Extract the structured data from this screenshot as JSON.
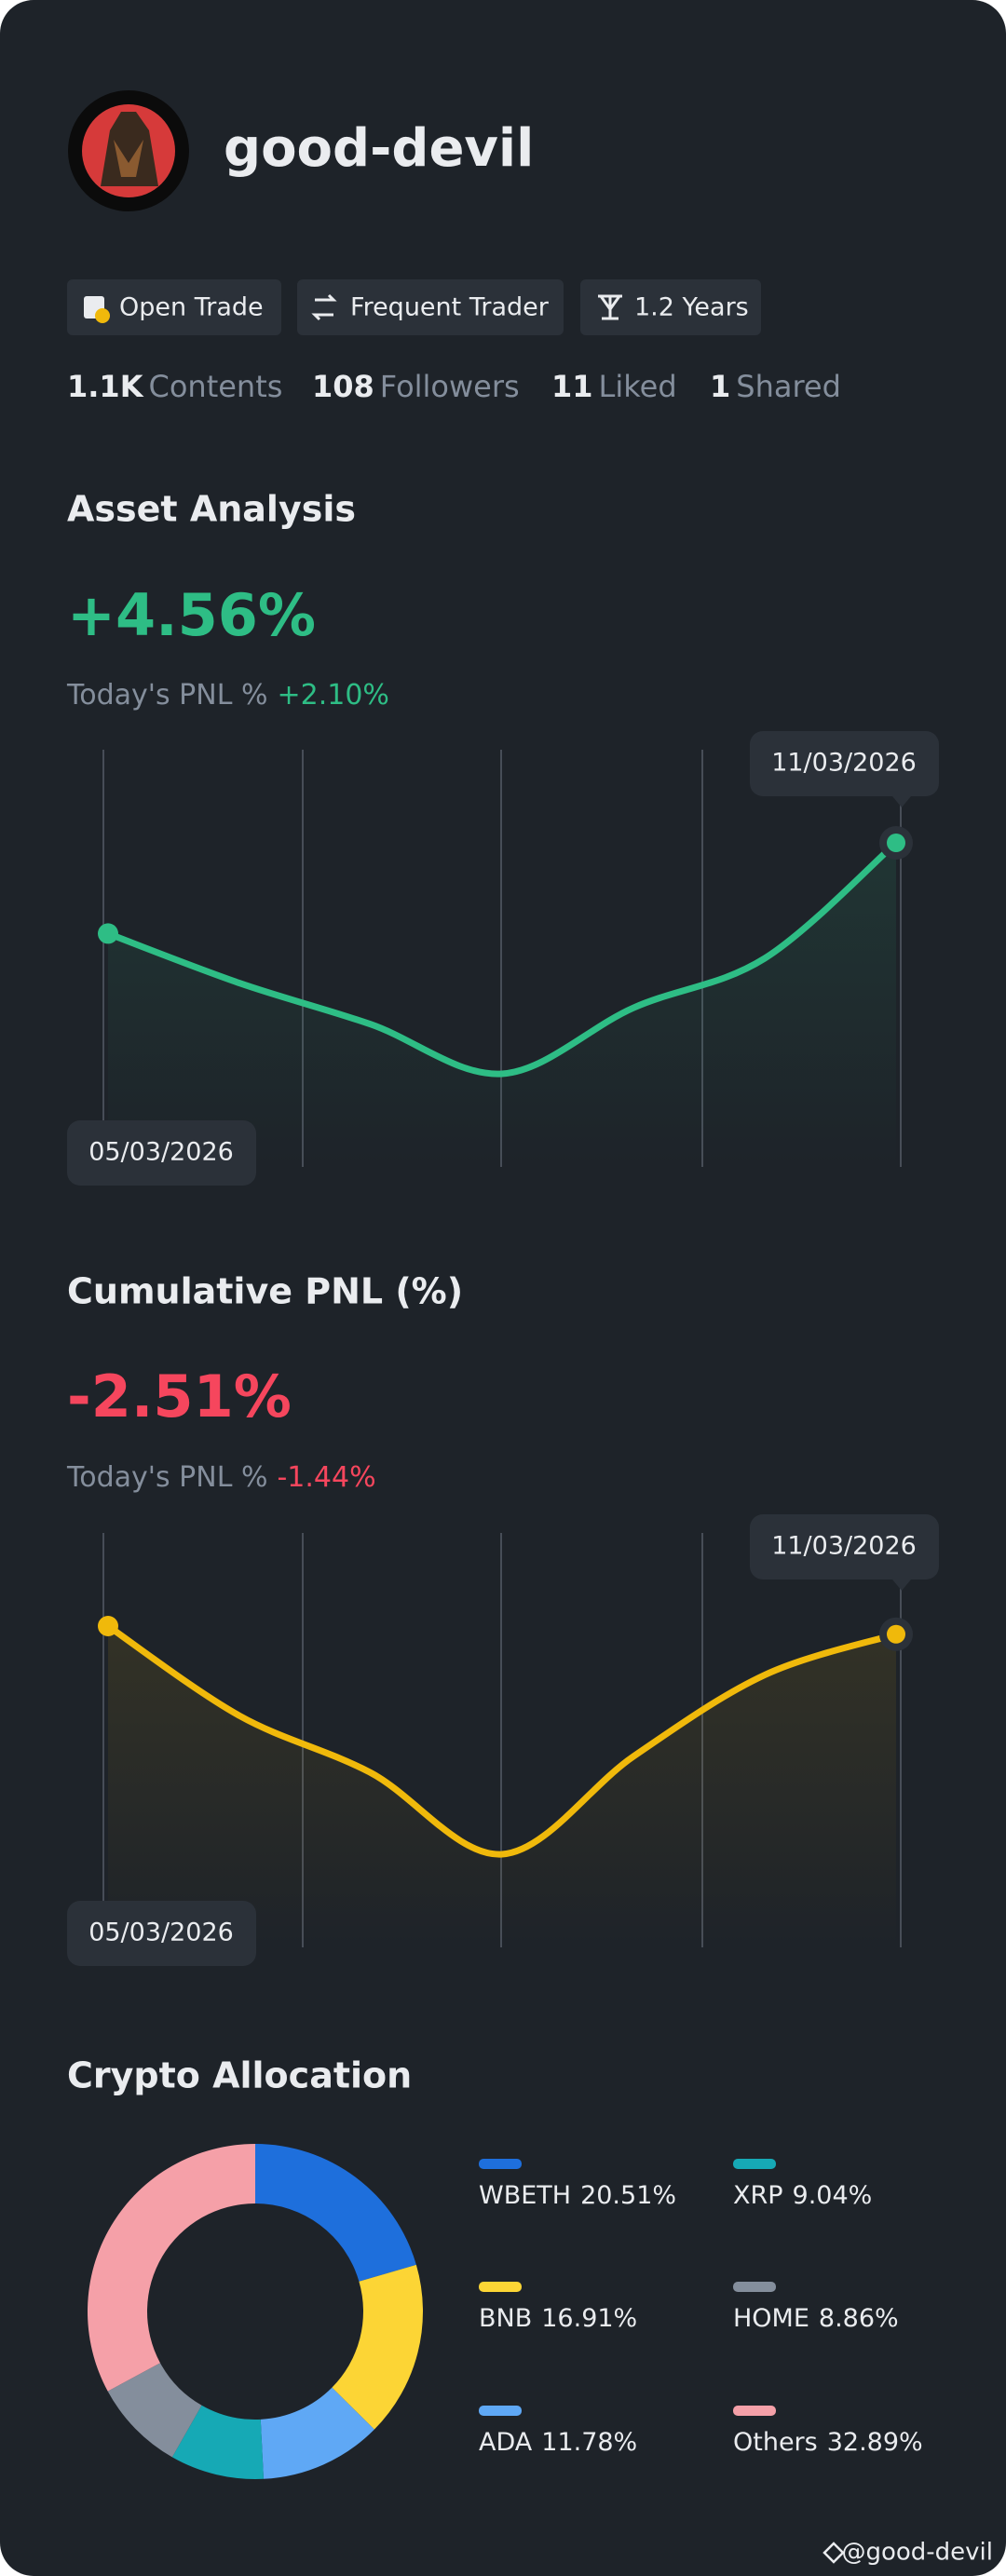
{
  "profile": {
    "name": "good-devil",
    "badges": [
      "Open Trade",
      "Frequent Trader",
      "1.2 Years"
    ],
    "stats": [
      {
        "value": "1.1K",
        "label": "Contents"
      },
      {
        "value": "108",
        "label": "Followers"
      },
      {
        "value": "11",
        "label": "Liked"
      },
      {
        "value": "1",
        "label": "Shared"
      }
    ]
  },
  "asset_analysis": {
    "title": "Asset Analysis",
    "value": "+4.56%",
    "today_label": "Today's PNL %",
    "today_value": "+2.10%",
    "chart_data": {
      "type": "line",
      "categories": [
        "05/03/2026",
        null,
        null,
        null,
        null,
        null,
        "11/03/2026"
      ],
      "series": [
        {
          "color": "#2ebd85",
          "values": [
            1.7,
            1.1,
            0.6,
            0,
            0.8,
            1.4,
            2.8
          ]
        }
      ]
    }
  },
  "cumulative_pnl": {
    "title": "Cumulative PNL (%)",
    "value": "-2.51%",
    "today_label": "Today's PNL %",
    "today_value": "-1.44%",
    "chart_data": {
      "type": "line",
      "categories": [
        "05/03/2026",
        null,
        null,
        null,
        null,
        null,
        "11/03/2026"
      ],
      "series": [
        {
          "color": "#f0b90b",
          "values": [
            0,
            -1.1,
            -1.8,
            -2.8,
            -1.6,
            -0.6,
            -0.1
          ]
        }
      ]
    }
  },
  "crypto_allocation": {
    "title": "Crypto Allocation",
    "chart_data": {
      "type": "pie",
      "categories": [
        "WBETH",
        "BNB",
        "ADA",
        "XRP",
        "HOME",
        "Others"
      ],
      "values": [
        20.51,
        16.91,
        11.78,
        9.04,
        8.86,
        32.89
      ],
      "value_labels": [
        "20.51%",
        "16.91%",
        "11.78%",
        "9.04%",
        "8.86%",
        "32.89%"
      ],
      "colors": [
        "#1e6fdc",
        "#fcd535",
        "#5fa8f5",
        "#16a9b5",
        "#848e9c",
        "#f5a0a8"
      ]
    }
  },
  "watermark": "@good-devil"
}
